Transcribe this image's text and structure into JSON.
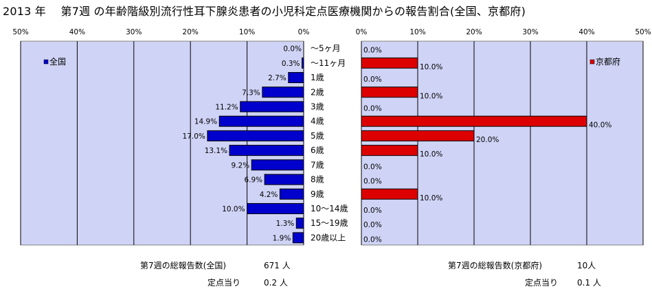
{
  "title": "2013 年　 第7週 の年齢階級別流行性耳下腺炎患者の小児科定点医療機関からの報告割合(全国、京都府)",
  "colors": {
    "plot_bg": "#cfd3f5",
    "national_bar": "#0000cc",
    "kyoto_bar": "#dd0000",
    "grid": "#000000"
  },
  "chart_data": [
    {
      "type": "bar",
      "orientation": "horizontal",
      "direction": "right-to-left",
      "legend": {
        "label": "全国",
        "position": "top-left"
      },
      "xlim": [
        0,
        50
      ],
      "x_ticks": [
        "50%",
        "40%",
        "30%",
        "20%",
        "10%",
        "0%"
      ],
      "grid": true,
      "categories": [
        "～5ヶ月",
        "～11ヶ月",
        "1歳",
        "2歳",
        "3歳",
        "4歳",
        "5歳",
        "6歳",
        "7歳",
        "8歳",
        "9歳",
        "10～14歳",
        "15～19歳",
        "20歳以上"
      ],
      "values": [
        0.0,
        0.3,
        2.7,
        7.3,
        11.2,
        14.9,
        17.0,
        13.1,
        9.2,
        6.9,
        4.2,
        10.0,
        1.3,
        1.9
      ],
      "labels": [
        "0.0%",
        "0.3%",
        "2.7%",
        "7.3%",
        "11.2%",
        "14.9%",
        "17.0%",
        "13.1%",
        "9.2%",
        "6.9%",
        "4.2%",
        "10.0%",
        "1.3%",
        "1.9%"
      ]
    },
    {
      "type": "bar",
      "orientation": "horizontal",
      "direction": "left-to-right",
      "legend": {
        "label": "京都府",
        "position": "top-right"
      },
      "xlim": [
        0,
        50
      ],
      "x_ticks": [
        "0%",
        "10%",
        "20%",
        "30%",
        "40%",
        "50%"
      ],
      "grid": true,
      "categories": [
        "～5ヶ月",
        "～11ヶ月",
        "1歳",
        "2歳",
        "3歳",
        "4歳",
        "5歳",
        "6歳",
        "7歳",
        "8歳",
        "9歳",
        "10～14歳",
        "15～19歳",
        "20歳以上"
      ],
      "values": [
        0.0,
        10.0,
        0.0,
        10.0,
        0.0,
        40.0,
        20.0,
        10.0,
        0.0,
        0.0,
        10.0,
        0.0,
        0.0,
        0.0
      ],
      "labels": [
        "0.0%",
        "10.0%",
        "0.0%",
        "10.0%",
        "0.0%",
        "40.0%",
        "20.0%",
        "10.0%",
        "0.0%",
        "0.0%",
        "10.0%",
        "0.0%",
        "0.0%",
        "0.0%"
      ]
    }
  ],
  "summary": {
    "national": {
      "total_label": "第7週の総報告数(全国)",
      "total_value": "671 人",
      "per_site_label": "定点当り",
      "per_site_value": "0.2 人"
    },
    "kyoto": {
      "total_label": "第7週の総報告数(京都府)",
      "total_value": "10人",
      "per_site_label": "定点当り",
      "per_site_value": "0.1 人"
    }
  }
}
